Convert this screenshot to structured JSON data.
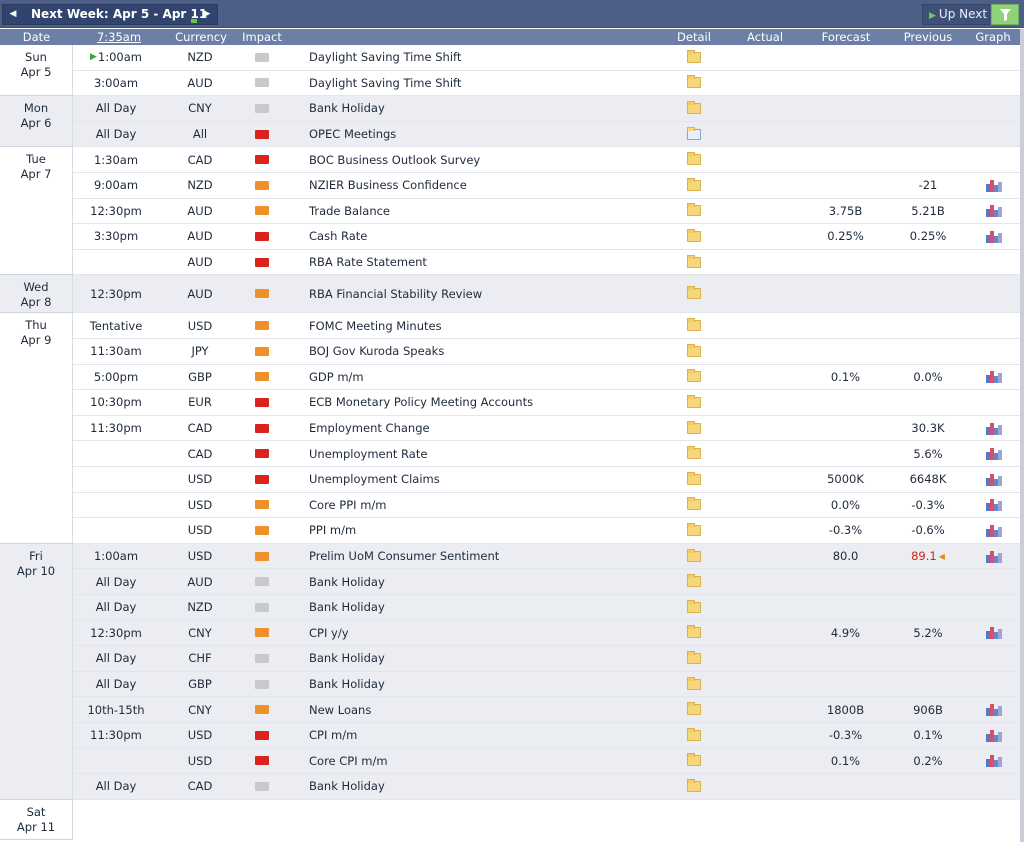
{
  "topbar": {
    "week_label": "Next Week: Apr 5 - Apr 11",
    "prev_icon": "◀",
    "next_icon": "▶",
    "up_next_label": "Up Next",
    "colors": {
      "bar": "#4d5f86",
      "filter": "#8fd27b",
      "header": "#6b7fa7"
    }
  },
  "header": {
    "date": "Date",
    "time": "7:35am",
    "currency": "Currency",
    "impact": "Impact",
    "detail": "Detail",
    "actual": "Actual",
    "forecast": "Forecast",
    "previous": "Previous",
    "graph": "Graph"
  },
  "days": [
    {
      "day": "Sun",
      "date": "Apr 5",
      "shade": false,
      "events": [
        {
          "time": "1:00am",
          "next": true,
          "currency": "NZD",
          "impact": "low",
          "title": "Daylight Saving Time Shift",
          "forecast": "",
          "previous": "",
          "graph": false
        },
        {
          "time": "3:00am",
          "currency": "AUD",
          "impact": "low",
          "title": "Daylight Saving Time Shift",
          "forecast": "",
          "previous": "",
          "graph": false
        }
      ]
    },
    {
      "day": "Mon",
      "date": "Apr 6",
      "shade": true,
      "events": [
        {
          "time": "All Day",
          "currency": "CNY",
          "impact": "low",
          "title": "Bank Holiday",
          "forecast": "",
          "previous": "",
          "graph": false
        },
        {
          "time": "All Day",
          "currency": "All",
          "impact": "high",
          "title": "OPEC Meetings",
          "forecast": "",
          "previous": "",
          "graph": false,
          "detail": "docs"
        }
      ]
    },
    {
      "day": "Tue",
      "date": "Apr 7",
      "shade": false,
      "events": [
        {
          "time": "1:30am",
          "currency": "CAD",
          "impact": "high",
          "title": "BOC Business Outlook Survey",
          "forecast": "",
          "previous": "",
          "graph": false
        },
        {
          "time": "9:00am",
          "currency": "NZD",
          "impact": "medium",
          "title": "NZIER Business Confidence",
          "forecast": "",
          "previous": "-21",
          "graph": true
        },
        {
          "time": "12:30pm",
          "currency": "AUD",
          "impact": "medium",
          "title": "Trade Balance",
          "forecast": "3.75B",
          "previous": "5.21B",
          "graph": true
        },
        {
          "time": "3:30pm",
          "currency": "AUD",
          "impact": "high",
          "title": "Cash Rate",
          "forecast": "0.25%",
          "previous": "0.25%",
          "graph": true
        },
        {
          "time": "",
          "currency": "AUD",
          "impact": "high",
          "title": "RBA Rate Statement",
          "forecast": "",
          "previous": "",
          "graph": false
        }
      ]
    },
    {
      "day": "Wed",
      "date": "Apr 8",
      "shade": true,
      "events": [
        {
          "time": "12:30pm",
          "currency": "AUD",
          "impact": "medium",
          "title": "RBA Financial Stability Review",
          "forecast": "",
          "previous": "",
          "graph": false
        }
      ]
    },
    {
      "day": "Thu",
      "date": "Apr 9",
      "shade": false,
      "events": [
        {
          "time": "Tentative",
          "currency": "USD",
          "impact": "medium",
          "title": "FOMC Meeting Minutes",
          "forecast": "",
          "previous": "",
          "graph": false
        },
        {
          "time": "11:30am",
          "currency": "JPY",
          "impact": "medium",
          "title": "BOJ Gov Kuroda Speaks",
          "forecast": "",
          "previous": "",
          "graph": false
        },
        {
          "time": "5:00pm",
          "currency": "GBP",
          "impact": "medium",
          "title": "GDP m/m",
          "forecast": "0.1%",
          "previous": "0.0%",
          "graph": true
        },
        {
          "time": "10:30pm",
          "currency": "EUR",
          "impact": "high",
          "title": "ECB Monetary Policy Meeting Accounts",
          "forecast": "",
          "previous": "",
          "graph": false
        },
        {
          "time": "11:30pm",
          "currency": "CAD",
          "impact": "high",
          "title": "Employment Change",
          "forecast": "",
          "previous": "30.3K",
          "graph": true
        },
        {
          "time": "",
          "currency": "CAD",
          "impact": "high",
          "title": "Unemployment Rate",
          "forecast": "",
          "previous": "5.6%",
          "graph": true
        },
        {
          "time": "",
          "currency": "USD",
          "impact": "high",
          "title": "Unemployment Claims",
          "forecast": "5000K",
          "previous": "6648K",
          "graph": true
        },
        {
          "time": "",
          "currency": "USD",
          "impact": "medium",
          "title": "Core PPI m/m",
          "forecast": "0.0%",
          "previous": "-0.3%",
          "graph": true
        },
        {
          "time": "",
          "currency": "USD",
          "impact": "medium",
          "title": "PPI m/m",
          "forecast": "-0.3%",
          "previous": "-0.6%",
          "graph": true
        }
      ]
    },
    {
      "day": "Fri",
      "date": "Apr 10",
      "shade": true,
      "events": [
        {
          "time": "1:00am",
          "currency": "USD",
          "impact": "medium",
          "title": "Prelim UoM Consumer Sentiment",
          "forecast": "80.0",
          "previous": "89.1",
          "previous_revised": true,
          "graph": true
        },
        {
          "time": "All Day",
          "currency": "AUD",
          "impact": "low",
          "title": "Bank Holiday",
          "forecast": "",
          "previous": "",
          "graph": false
        },
        {
          "time": "All Day",
          "currency": "NZD",
          "impact": "low",
          "title": "Bank Holiday",
          "forecast": "",
          "previous": "",
          "graph": false
        },
        {
          "time": "12:30pm",
          "currency": "CNY",
          "impact": "medium",
          "title": "CPI y/y",
          "forecast": "4.9%",
          "previous": "5.2%",
          "graph": true
        },
        {
          "time": "All Day",
          "currency": "CHF",
          "impact": "low",
          "title": "Bank Holiday",
          "forecast": "",
          "previous": "",
          "graph": false
        },
        {
          "time": "All Day",
          "currency": "GBP",
          "impact": "low",
          "title": "Bank Holiday",
          "forecast": "",
          "previous": "",
          "graph": false
        },
        {
          "time": "10th-15th",
          "currency": "CNY",
          "impact": "medium",
          "title": "New Loans",
          "forecast": "1800B",
          "previous": "906B",
          "graph": true
        },
        {
          "time": "11:30pm",
          "currency": "USD",
          "impact": "high",
          "title": "CPI m/m",
          "forecast": "-0.3%",
          "previous": "0.1%",
          "graph": true
        },
        {
          "time": "",
          "currency": "USD",
          "impact": "high",
          "title": "Core CPI m/m",
          "forecast": "0.1%",
          "previous": "0.2%",
          "graph": true
        },
        {
          "time": "All Day",
          "currency": "CAD",
          "impact": "low",
          "title": "Bank Holiday",
          "forecast": "",
          "previous": "",
          "graph": false
        }
      ]
    },
    {
      "day": "Sat",
      "date": "Apr 11",
      "shade": false,
      "events": []
    }
  ]
}
